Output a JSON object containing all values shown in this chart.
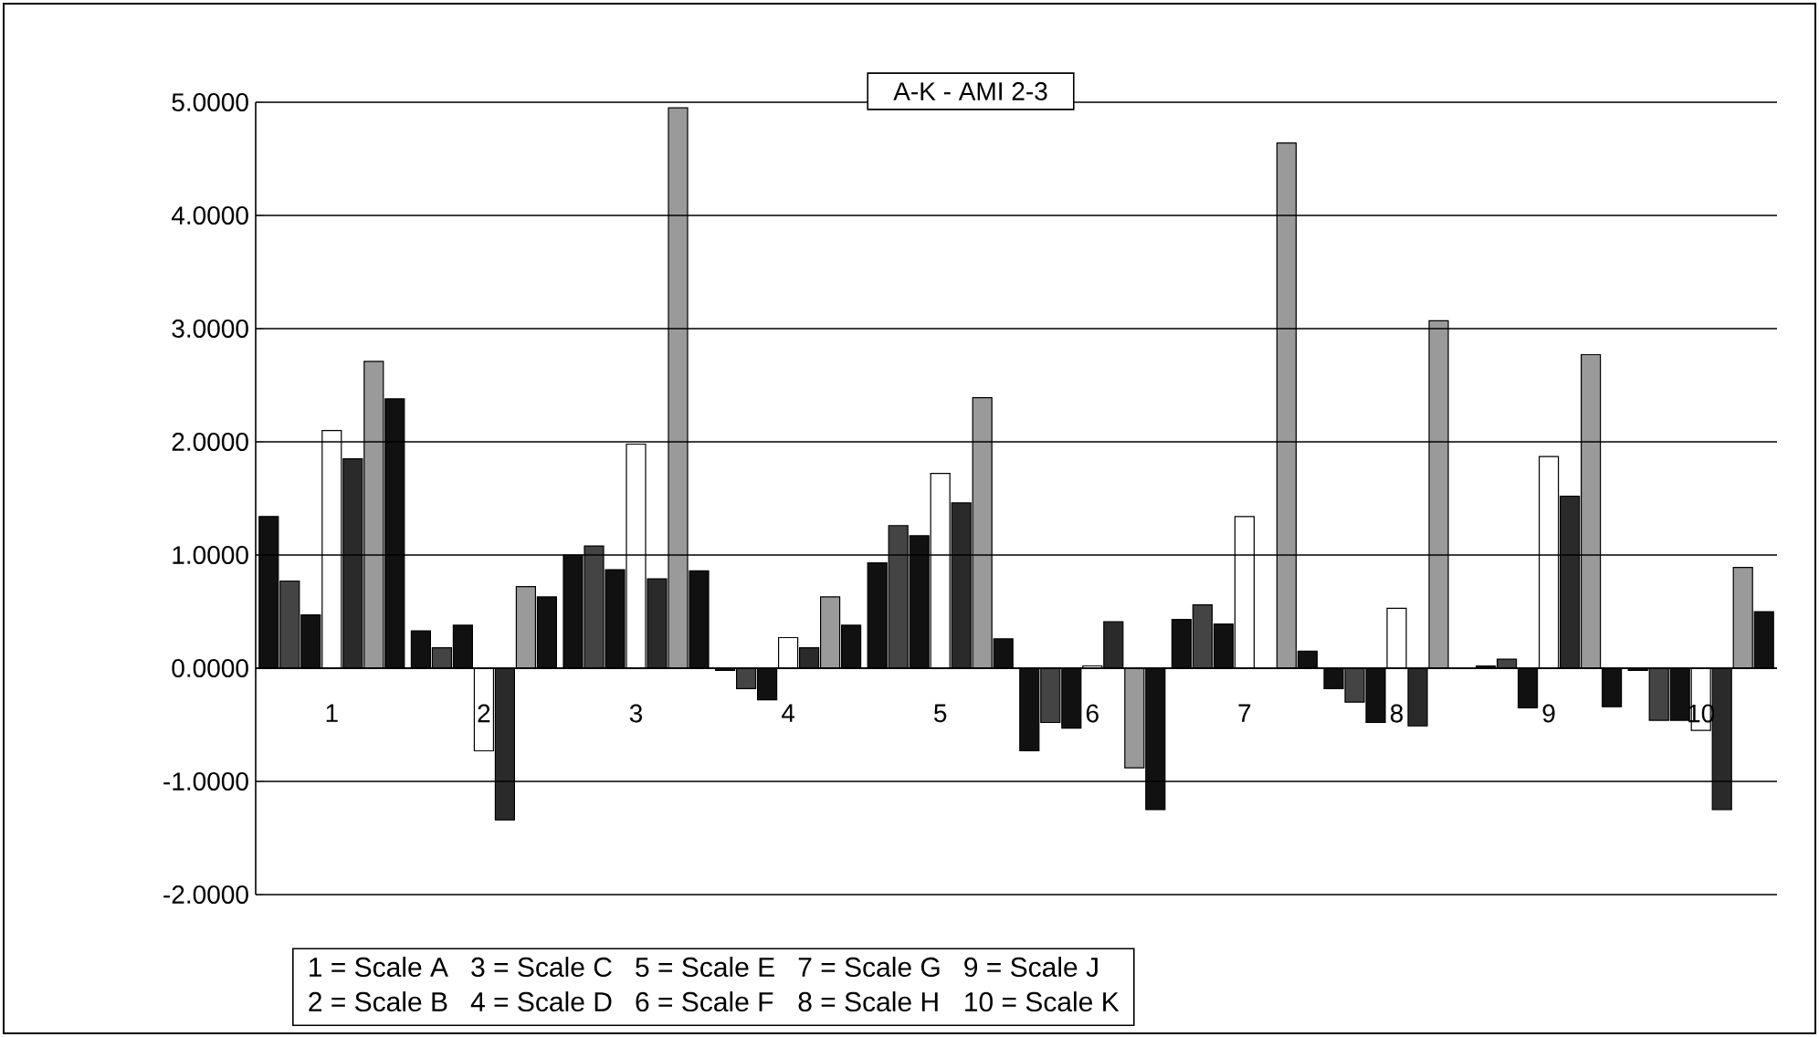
{
  "chart_data": {
    "type": "bar",
    "title": "A-K - AMI 2-3",
    "categories": [
      "1",
      "2",
      "3",
      "4",
      "5",
      "6",
      "7",
      "8",
      "9",
      "10"
    ],
    "series": [
      {
        "color": "#111111",
        "values": [
          1.34,
          0.33,
          1.0,
          -0.02,
          0.93,
          -0.73,
          0.43,
          -0.18,
          0.02,
          -0.02
        ]
      },
      {
        "color": "#444444",
        "values": [
          0.77,
          0.18,
          1.08,
          -0.18,
          1.26,
          -0.48,
          0.56,
          -0.3,
          0.08,
          -0.46
        ]
      },
      {
        "color": "#111111",
        "values": [
          0.47,
          0.38,
          0.87,
          -0.28,
          1.17,
          -0.53,
          0.39,
          -0.48,
          -0.35,
          -0.46
        ]
      },
      {
        "color": "#ffffff",
        "values": [
          2.1,
          -0.73,
          1.98,
          0.27,
          1.72,
          0.02,
          1.34,
          0.53,
          1.87,
          -0.55
        ]
      },
      {
        "color": "#2a2a2a",
        "values": [
          1.85,
          -1.34,
          0.79,
          0.18,
          1.46,
          0.41,
          null,
          -0.51,
          1.52,
          -1.25
        ]
      },
      {
        "color": "#9a9a9a",
        "values": [
          2.71,
          0.72,
          4.95,
          0.63,
          2.39,
          -0.88,
          4.64,
          3.07,
          2.77,
          0.89
        ]
      },
      {
        "color": "#111111",
        "values": [
          2.38,
          0.63,
          0.86,
          0.38,
          0.26,
          -1.25,
          0.15,
          null,
          -0.34,
          0.5
        ]
      }
    ],
    "ylim": [
      -2,
      5
    ],
    "yticks": [
      {
        "value": -2,
        "label": "-2.0000"
      },
      {
        "value": -1,
        "label": "-1.0000"
      },
      {
        "value": 0,
        "label": "0.0000"
      },
      {
        "value": 1,
        "label": "1.0000"
      },
      {
        "value": 2,
        "label": "2.0000"
      },
      {
        "value": 3,
        "label": "3.0000"
      },
      {
        "value": 4,
        "label": "4.0000"
      },
      {
        "value": 5,
        "label": "5.0000"
      }
    ],
    "grid": "y",
    "annotations": [
      "1 = Scale A",
      "3 = Scale C",
      "5 = Scale E",
      "7 = Scale G",
      "9 = Scale J",
      "2 = Scale B",
      "4 = Scale D",
      "6 = Scale F",
      "8 = Scale H",
      "10 = Scale K"
    ]
  }
}
